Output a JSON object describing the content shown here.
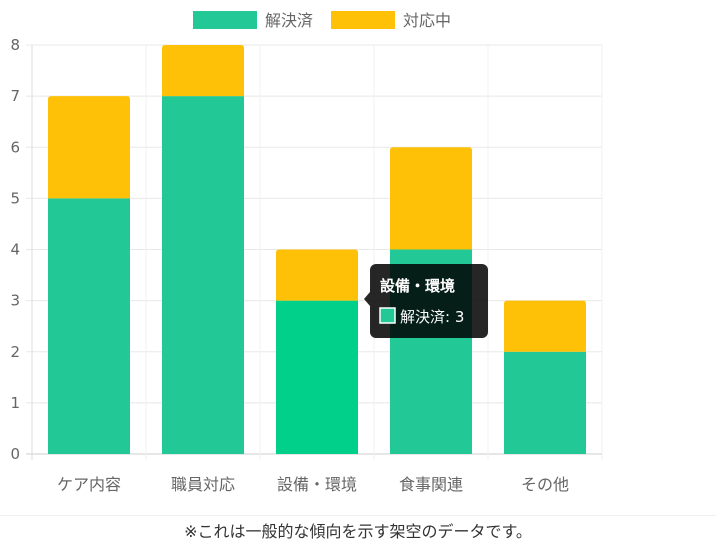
{
  "chart_data": {
    "type": "bar",
    "stacked": true,
    "categories": [
      "ケア内容",
      "職員対応",
      "設備・環境",
      "食事関連",
      "その他"
    ],
    "series": [
      {
        "name": "解決済",
        "values": [
          5,
          7,
          3,
          4,
          2
        ],
        "color": "#22c997"
      },
      {
        "name": "対応中",
        "values": [
          2,
          1,
          1,
          2,
          1
        ],
        "color": "#ffc107"
      }
    ],
    "ylim": [
      0,
      8
    ],
    "yticks": [
      0,
      1,
      2,
      3,
      4,
      5,
      6,
      7,
      8
    ],
    "grid": true,
    "legend_position": "top-center",
    "tooltip": {
      "category_index": 2,
      "title": "設備・環境",
      "body": "解決済: 3"
    }
  },
  "footer": {
    "note": "※これは一般的な傾向を示す架空のデータです。"
  }
}
